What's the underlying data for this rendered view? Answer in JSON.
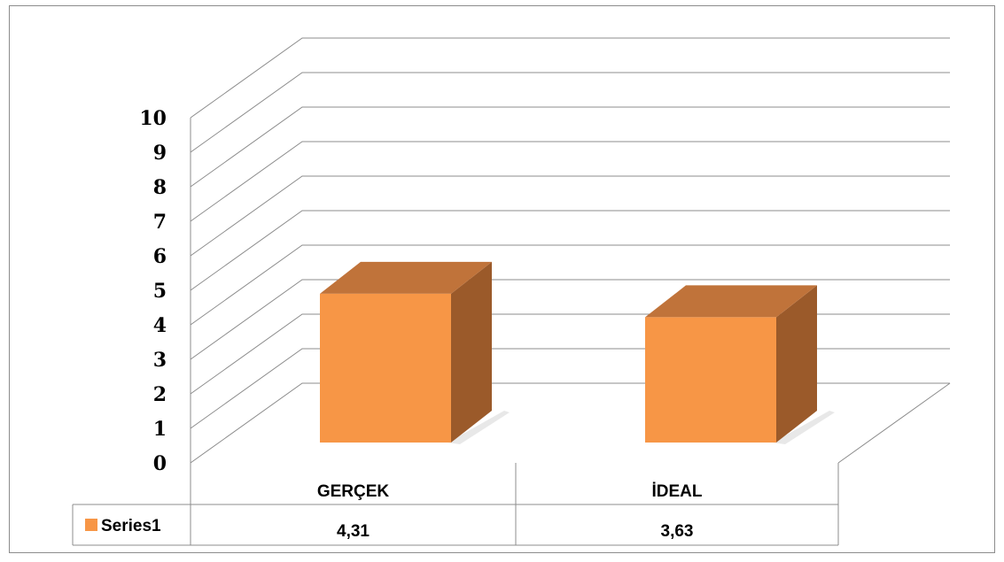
{
  "chart_data": {
    "type": "bar",
    "style": "3d-column-with-data-table",
    "categories": [
      "GERÇEK",
      "İDEAL"
    ],
    "series": [
      {
        "name": "Series1",
        "values": [
          4.31,
          3.63
        ],
        "color": "#F79646"
      }
    ],
    "value_labels": [
      "4,31",
      "3,63"
    ],
    "ylim": [
      0,
      10
    ],
    "yticks": [
      "0",
      "1",
      "2",
      "3",
      "4",
      "5",
      "6",
      "7",
      "8",
      "9",
      "10"
    ],
    "grid": true,
    "legend": "data-table-left"
  },
  "colors": {
    "bar_front": "#F79646",
    "bar_top": "#C0733A",
    "bar_side": "#9B5A2A",
    "gridline": "#8c8c8c",
    "border": "#8c8c8c"
  }
}
